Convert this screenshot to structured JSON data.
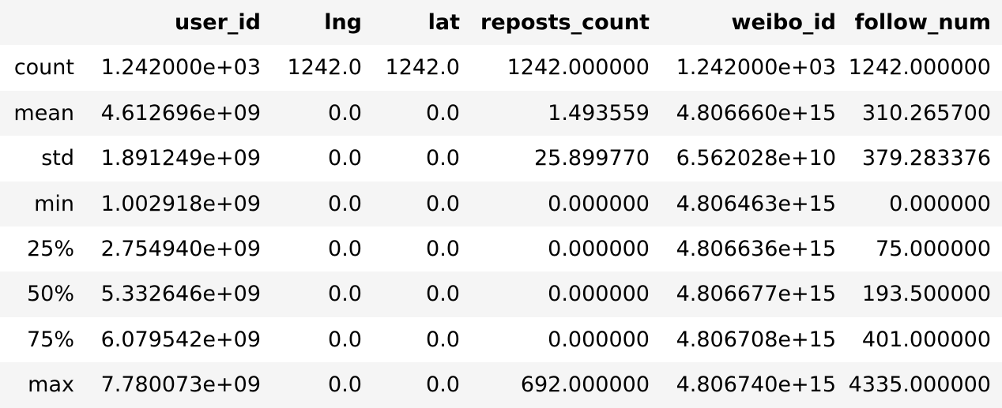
{
  "table": {
    "index_header": "",
    "columns": [
      "user_id",
      "lng",
      "lat",
      "reposts_count",
      "weibo_id",
      "follow_num"
    ],
    "rows": [
      {
        "label": "count",
        "values": [
          "1.242000e+03",
          "1242.0",
          "1242.0",
          "1242.000000",
          "1.242000e+03",
          "1242.000000"
        ]
      },
      {
        "label": "mean",
        "values": [
          "4.612696e+09",
          "0.0",
          "0.0",
          "1.493559",
          "4.806660e+15",
          "310.265700"
        ]
      },
      {
        "label": "std",
        "values": [
          "1.891249e+09",
          "0.0",
          "0.0",
          "25.899770",
          "6.562028e+10",
          "379.283376"
        ]
      },
      {
        "label": "min",
        "values": [
          "1.002918e+09",
          "0.0",
          "0.0",
          "0.000000",
          "4.806463e+15",
          "0.000000"
        ]
      },
      {
        "label": "25%",
        "values": [
          "2.754940e+09",
          "0.0",
          "0.0",
          "0.000000",
          "4.806636e+15",
          "75.000000"
        ]
      },
      {
        "label": "50%",
        "values": [
          "5.332646e+09",
          "0.0",
          "0.0",
          "0.000000",
          "4.806677e+15",
          "193.500000"
        ]
      },
      {
        "label": "75%",
        "values": [
          "6.079542e+09",
          "0.0",
          "0.0",
          "0.000000",
          "4.806708e+15",
          "401.000000"
        ]
      },
      {
        "label": "max",
        "values": [
          "7.780073e+09",
          "0.0",
          "0.0",
          "692.000000",
          "4.806740e+15",
          "4335.000000"
        ]
      }
    ]
  },
  "colors": {
    "header_background": "#f5f5f5",
    "stripe_background": "#f5f5f5",
    "text": "#000000"
  }
}
